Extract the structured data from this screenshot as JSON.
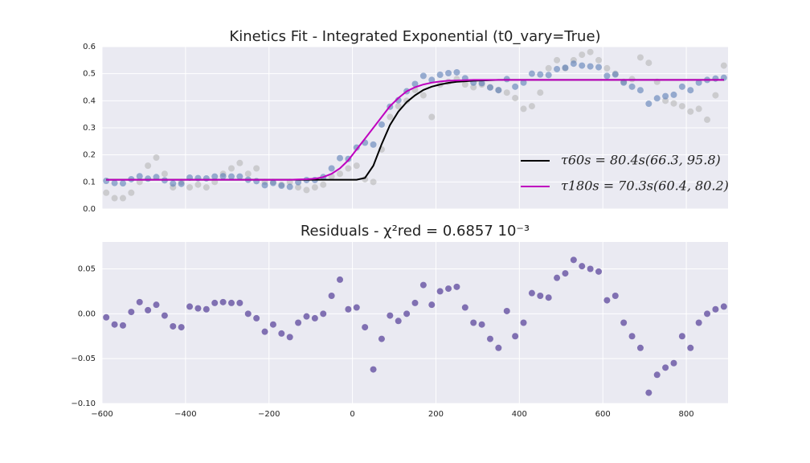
{
  "chart_data": [
    {
      "type": "scatter",
      "title": "Kinetics Fit - Integrated Exponential (t0_vary=True)",
      "x": [
        -590,
        -570,
        -550,
        -530,
        -510,
        -490,
        -470,
        -450,
        -430,
        -410,
        -390,
        -370,
        -350,
        -330,
        -310,
        -290,
        -270,
        -250,
        -230,
        -210,
        -190,
        -170,
        -150,
        -130,
        -110,
        -90,
        -70,
        -50,
        -30,
        -10,
        10,
        30,
        50,
        70,
        90,
        110,
        130,
        150,
        170,
        190,
        210,
        230,
        250,
        270,
        290,
        310,
        330,
        350,
        370,
        390,
        410,
        430,
        450,
        470,
        490,
        510,
        530,
        550,
        570,
        590,
        610,
        630,
        650,
        670,
        690,
        710,
        730,
        750,
        770,
        790,
        810,
        830,
        850,
        870,
        890
      ],
      "xlim": [
        -600,
        900
      ],
      "ylim": [
        0,
        0.6
      ],
      "yticks": [
        {
          "value": 0,
          "label": "0.0"
        },
        0.1,
        0.2,
        0.3,
        0.4,
        0.5,
        0.6
      ],
      "grid": true,
      "legend": "lower right",
      "series": [
        {
          "mode": "markers",
          "color": "#b0b0b0",
          "values": [
            0.06,
            0.04,
            0.04,
            0.06,
            0.1,
            0.16,
            0.19,
            0.13,
            0.08,
            0.1,
            0.08,
            0.09,
            0.08,
            0.1,
            0.13,
            0.15,
            0.17,
            0.13,
            0.15,
            0.1,
            0.1,
            0.09,
            0.1,
            0.08,
            0.07,
            0.08,
            0.09,
            0.12,
            0.13,
            0.15,
            0.16,
            0.11,
            0.1,
            0.22,
            0.34,
            0.38,
            0.4,
            0.44,
            0.42,
            0.34,
            0.46,
            0.47,
            0.48,
            0.46,
            0.45,
            0.46,
            0.45,
            0.44,
            0.43,
            0.41,
            0.37,
            0.38,
            0.43,
            0.52,
            0.55,
            0.52,
            0.55,
            0.57,
            0.58,
            0.55,
            0.52,
            0.5,
            0.47,
            0.48,
            0.56,
            0.54,
            0.47,
            0.4,
            0.39,
            0.38,
            0.36,
            0.37,
            0.33,
            0.42,
            0.53
          ]
        },
        {
          "mode": "markers",
          "color": "#4c72b0",
          "values": [
            0.104,
            0.096,
            0.095,
            0.11,
            0.121,
            0.112,
            0.118,
            0.106,
            0.094,
            0.093,
            0.116,
            0.114,
            0.113,
            0.12,
            0.121,
            0.12,
            0.12,
            0.108,
            0.103,
            0.088,
            0.096,
            0.086,
            0.082,
            0.099,
            0.107,
            0.107,
            0.118,
            0.15,
            0.188,
            0.185,
            0.227,
            0.245,
            0.238,
            0.312,
            0.378,
            0.402,
            0.435,
            0.462,
            0.492,
            0.477,
            0.496,
            0.502,
            0.505,
            0.483,
            0.467,
            0.465,
            0.449,
            0.439,
            0.48,
            0.452,
            0.467,
            0.5,
            0.497,
            0.495,
            0.517,
            0.522,
            0.537,
            0.53,
            0.527,
            0.524,
            0.492,
            0.497,
            0.467,
            0.452,
            0.439,
            0.389,
            0.409,
            0.417,
            0.422,
            0.452,
            0.439,
            0.467,
            0.477,
            0.482,
            0.485
          ]
        },
        {
          "mode": "line",
          "color": "#000000",
          "name": "τ60s = 80.4s(66.3, 95.8)",
          "values": [
            0.108,
            0.108,
            0.108,
            0.108,
            0.108,
            0.108,
            0.108,
            0.108,
            0.108,
            0.108,
            0.108,
            0.108,
            0.108,
            0.108,
            0.108,
            0.108,
            0.108,
            0.108,
            0.108,
            0.108,
            0.108,
            0.108,
            0.108,
            0.108,
            0.108,
            0.108,
            0.108,
            0.108,
            0.108,
            0.108,
            0.108,
            0.115,
            0.16,
            0.24,
            0.31,
            0.36,
            0.395,
            0.42,
            0.44,
            0.452,
            0.46,
            0.466,
            0.47,
            0.472,
            0.474,
            0.475,
            0.476,
            0.477,
            0.477,
            0.477,
            0.477,
            0.477,
            0.477,
            0.477,
            0.477,
            0.477,
            0.477,
            0.477,
            0.477,
            0.477,
            0.477,
            0.477,
            0.477,
            0.477,
            0.477,
            0.477,
            0.477,
            0.477,
            0.477,
            0.477,
            0.477,
            0.477,
            0.477,
            0.477,
            0.477
          ]
        },
        {
          "mode": "line",
          "color": "#bf00bf",
          "name": "τ180s = 70.3s(60.4, 80.2)",
          "values": [
            0.108,
            0.108,
            0.108,
            0.108,
            0.108,
            0.108,
            0.108,
            0.108,
            0.108,
            0.108,
            0.108,
            0.108,
            0.108,
            0.108,
            0.108,
            0.108,
            0.108,
            0.108,
            0.108,
            0.108,
            0.108,
            0.108,
            0.108,
            0.109,
            0.11,
            0.112,
            0.118,
            0.13,
            0.15,
            0.18,
            0.22,
            0.26,
            0.3,
            0.34,
            0.38,
            0.41,
            0.435,
            0.45,
            0.46,
            0.467,
            0.471,
            0.474,
            0.475,
            0.476,
            0.477,
            0.477,
            0.477,
            0.477,
            0.477,
            0.477,
            0.477,
            0.477,
            0.477,
            0.477,
            0.477,
            0.477,
            0.477,
            0.477,
            0.477,
            0.477,
            0.477,
            0.477,
            0.477,
            0.477,
            0.477,
            0.477,
            0.477,
            0.477,
            0.477,
            0.477,
            0.477,
            0.477,
            0.477,
            0.477,
            0.477
          ]
        }
      ]
    },
    {
      "type": "scatter",
      "title": "Residuals - χ²red = 0.6857 10⁻³",
      "x": [
        -590,
        -570,
        -550,
        -530,
        -510,
        -490,
        -470,
        -450,
        -430,
        -410,
        -390,
        -370,
        -350,
        -330,
        -310,
        -290,
        -270,
        -250,
        -230,
        -210,
        -190,
        -170,
        -150,
        -130,
        -110,
        -90,
        -70,
        -50,
        -30,
        -10,
        10,
        30,
        50,
        70,
        90,
        110,
        130,
        150,
        170,
        190,
        210,
        230,
        250,
        270,
        290,
        310,
        330,
        350,
        370,
        390,
        410,
        430,
        450,
        470,
        490,
        510,
        530,
        550,
        570,
        590,
        610,
        630,
        650,
        670,
        690,
        710,
        730,
        750,
        770,
        790,
        810,
        830,
        850,
        870,
        890
      ],
      "xlim": [
        -600,
        900
      ],
      "xticks": [
        {
          "value": -600,
          "label": "−600"
        },
        {
          "value": -400,
          "label": "−400"
        },
        {
          "value": -200,
          "label": "−200"
        },
        0,
        200,
        400,
        600,
        800
      ],
      "ylim": [
        -0.1,
        0.08
      ],
      "yticks": [
        {
          "value": -0.1,
          "label": "−0.10"
        },
        {
          "value": -0.05,
          "label": "−0.05"
        },
        {
          "value": 0,
          "label": "0.00"
        },
        0.05
      ],
      "grid": true,
      "series": [
        {
          "mode": "markers",
          "color": "#7463ab",
          "values": [
            -0.004,
            -0.012,
            -0.013,
            0.002,
            0.013,
            0.004,
            0.01,
            -0.002,
            -0.014,
            -0.015,
            0.008,
            0.006,
            0.005,
            0.012,
            0.013,
            0.012,
            0.012,
            0.0,
            -0.005,
            -0.02,
            -0.012,
            -0.022,
            -0.026,
            -0.01,
            -0.003,
            -0.005,
            0.0,
            0.02,
            0.038,
            0.005,
            0.007,
            -0.015,
            -0.062,
            -0.028,
            -0.002,
            -0.008,
            0.0,
            0.012,
            0.032,
            0.01,
            0.025,
            0.028,
            0.03,
            0.007,
            -0.01,
            -0.012,
            -0.028,
            -0.038,
            0.003,
            -0.025,
            -0.01,
            0.023,
            0.02,
            0.018,
            0.04,
            0.045,
            0.06,
            0.053,
            0.05,
            0.047,
            0.015,
            0.02,
            -0.01,
            -0.025,
            -0.038,
            -0.088,
            -0.068,
            -0.06,
            -0.055,
            -0.025,
            -0.038,
            -0.01,
            0.0,
            0.005,
            0.008
          ]
        }
      ]
    }
  ]
}
